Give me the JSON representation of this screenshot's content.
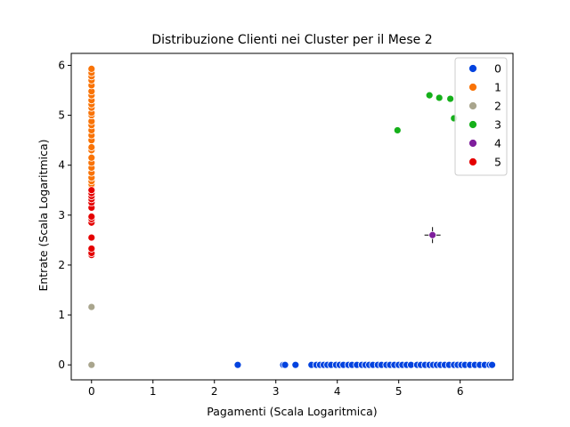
{
  "chart_data": {
    "type": "scatter",
    "title": "Distribuzione Clienti nei Cluster per il Mese 2",
    "xlabel": "Pagamenti (Scala Logaritmica)",
    "ylabel": "Entrate (Scala Logaritmica)",
    "xlim": [
      -0.33,
      6.86
    ],
    "ylim": [
      -0.3,
      6.24
    ],
    "xticks": [
      0,
      1,
      2,
      3,
      4,
      5,
      6
    ],
    "yticks": [
      0,
      1,
      2,
      3,
      4,
      5,
      6
    ],
    "grid": false,
    "legend_position": "top-right",
    "series": [
      {
        "name": "0",
        "color": "#0343df",
        "points": [
          [
            2.38,
            0
          ],
          [
            3.12,
            0
          ],
          [
            3.15,
            0
          ],
          [
            3.32,
            0
          ],
          [
            3.58,
            0
          ],
          [
            3.66,
            0
          ],
          [
            3.72,
            0
          ],
          [
            3.78,
            0
          ],
          [
            3.84,
            0
          ],
          [
            3.9,
            0
          ],
          [
            3.98,
            0
          ],
          [
            4.04,
            0
          ],
          [
            4.1,
            0
          ],
          [
            4.18,
            0
          ],
          [
            4.24,
            0
          ],
          [
            4.32,
            0
          ],
          [
            4.4,
            0
          ],
          [
            4.46,
            0
          ],
          [
            4.52,
            0
          ],
          [
            4.58,
            0
          ],
          [
            4.66,
            0
          ],
          [
            4.72,
            0
          ],
          [
            4.8,
            0
          ],
          [
            4.86,
            0
          ],
          [
            4.93,
            0
          ],
          [
            5.0,
            0
          ],
          [
            5.06,
            0
          ],
          [
            5.13,
            0
          ],
          [
            5.2,
            0
          ],
          [
            5.3,
            0
          ],
          [
            5.36,
            0
          ],
          [
            5.43,
            0
          ],
          [
            5.5,
            0
          ],
          [
            5.56,
            0
          ],
          [
            5.62,
            0
          ],
          [
            5.68,
            0
          ],
          [
            5.75,
            0
          ],
          [
            5.82,
            0
          ],
          [
            5.9,
            0
          ],
          [
            5.96,
            0
          ],
          [
            6.02,
            0
          ],
          [
            6.08,
            0
          ],
          [
            6.16,
            0
          ],
          [
            6.24,
            0
          ],
          [
            6.32,
            0
          ],
          [
            6.4,
            0
          ],
          [
            6.48,
            0
          ],
          [
            6.52,
            0
          ]
        ]
      },
      {
        "name": "1",
        "color": "#f97306",
        "points": [
          [
            0,
            3.58
          ],
          [
            0,
            3.62
          ],
          [
            0,
            3.68
          ],
          [
            0,
            3.75
          ],
          [
            0,
            3.85
          ],
          [
            0,
            3.95
          ],
          [
            0,
            4.05
          ],
          [
            0,
            4.15
          ],
          [
            0,
            4.3
          ],
          [
            0,
            4.36
          ],
          [
            0,
            4.5
          ],
          [
            0,
            4.6
          ],
          [
            0,
            4.7
          ],
          [
            0,
            4.8
          ],
          [
            0,
            4.88
          ],
          [
            0,
            5.0
          ],
          [
            0,
            5.05
          ],
          [
            0,
            5.15
          ],
          [
            0,
            5.22
          ],
          [
            0,
            5.3
          ],
          [
            0,
            5.4
          ],
          [
            0,
            5.48
          ],
          [
            0,
            5.6
          ],
          [
            0,
            5.7
          ],
          [
            0,
            5.78
          ],
          [
            0,
            5.85
          ],
          [
            0,
            5.93
          ]
        ]
      },
      {
        "name": "2",
        "color": "#a9a58d",
        "points": [
          [
            0,
            1.16
          ],
          [
            0,
            0.0
          ]
        ]
      },
      {
        "name": "3",
        "color": "#15b01a",
        "points": [
          [
            4.98,
            4.7
          ],
          [
            5.5,
            5.4
          ],
          [
            5.66,
            5.35
          ],
          [
            5.84,
            5.33
          ],
          [
            5.9,
            4.94
          ]
        ]
      },
      {
        "name": "4",
        "color": "#7e1e9c",
        "points": [
          [
            5.55,
            2.6
          ]
        ]
      },
      {
        "name": "5",
        "color": "#e50000",
        "points": [
          [
            0,
            2.2
          ],
          [
            0,
            2.24
          ],
          [
            0,
            2.33
          ],
          [
            0,
            2.55
          ],
          [
            0,
            2.85
          ],
          [
            0,
            2.92
          ],
          [
            0,
            2.97
          ],
          [
            0,
            3.15
          ],
          [
            0,
            3.25
          ],
          [
            0,
            3.32
          ],
          [
            0,
            3.38
          ],
          [
            0,
            3.44
          ],
          [
            0,
            3.5
          ]
        ]
      }
    ]
  }
}
